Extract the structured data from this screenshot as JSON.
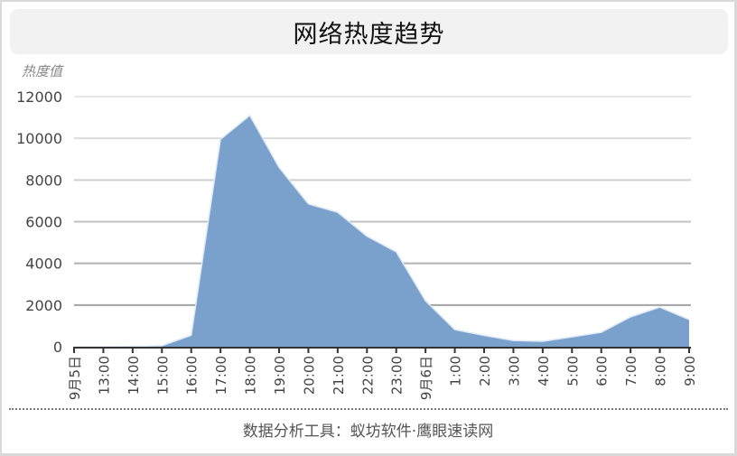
{
  "title": "网络热度趋势",
  "footer": "数据分析工具：蚁坊软件·鹰眼速读网",
  "colors": {
    "area_fill": "#7aa0cc",
    "area_stroke": "#dde8f5",
    "axis": "#333333",
    "title_bg": "#f2f2f2"
  },
  "chart_data": {
    "type": "area",
    "title": "网络热度趋势",
    "xlabel": "",
    "ylabel": "热度值",
    "ylim": [
      0,
      12000
    ],
    "yticks": [
      0,
      2000,
      4000,
      6000,
      8000,
      10000,
      12000
    ],
    "grid": true,
    "legend": null,
    "categories": [
      "9月5日",
      "13:00",
      "14:00",
      "15:00",
      "16:00",
      "17:00",
      "18:00",
      "19:00",
      "20:00",
      "21:00",
      "22:00",
      "23:00",
      "9月6日",
      "1:00",
      "2:00",
      "3:00",
      "4:00",
      "5:00",
      "6:00",
      "7:00",
      "8:00",
      "9:00"
    ],
    "series": [
      {
        "name": "热度值",
        "values": [
          0,
          0,
          20,
          50,
          550,
          9950,
          11100,
          8600,
          6850,
          6450,
          5300,
          4550,
          2200,
          820,
          540,
          300,
          260,
          470,
          690,
          1430,
          1900,
          1300
        ]
      }
    ]
  }
}
